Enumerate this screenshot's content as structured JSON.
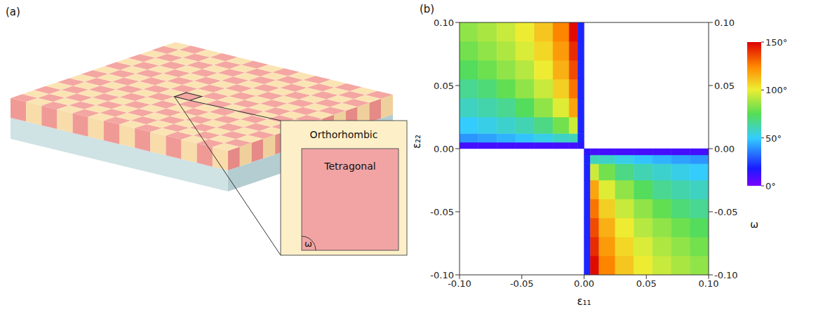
{
  "diagram": {
    "panel_label": "(a)",
    "inset": {
      "outer": "Orthorhombic",
      "inner": "Tetragonal",
      "angle": "ω"
    }
  },
  "chart_data": {
    "type": "heatmap",
    "panel_label": "(b)",
    "x_label": "ε₁₁",
    "y_label": "ε₂₂",
    "xlim": [
      -0.1,
      0.1
    ],
    "ylim": [
      -0.1,
      0.1
    ],
    "xticks": [
      {
        "value": -0.1,
        "label": "-0.10"
      },
      {
        "value": -0.05,
        "label": "-0.05"
      },
      {
        "value": 0,
        "label": "0.00"
      },
      {
        "value": 0.05,
        "label": "0.05"
      },
      {
        "value": 0.1,
        "label": "0.10"
      }
    ],
    "yticks": [
      {
        "value": -0.1,
        "label": "-0.10"
      },
      {
        "value": -0.05,
        "label": "-0.05"
      },
      {
        "value": 0,
        "label": "0.00"
      },
      {
        "value": 0.05,
        "label": "0.05"
      },
      {
        "value": 0.1,
        "label": "0.10"
      }
    ],
    "x_edges": [
      -0.1,
      -0.085,
      -0.07,
      -0.055,
      -0.04,
      -0.025,
      -0.012,
      -0.005,
      0,
      0.005,
      0.012,
      0.025,
      0.04,
      0.055,
      0.07,
      0.085,
      0.1
    ],
    "y_edges": [
      -0.1,
      -0.085,
      -0.07,
      -0.055,
      -0.04,
      -0.025,
      -0.012,
      -0.005,
      0,
      0.005,
      0.012,
      0.025,
      0.04,
      0.055,
      0.07,
      0.085,
      0.1
    ],
    "cells": [
      [
        null,
        null,
        null,
        null,
        null,
        null,
        null,
        null,
        20,
        148,
        125,
        110,
        101,
        94,
        89,
        85
      ],
      [
        null,
        null,
        null,
        null,
        null,
        null,
        null,
        null,
        20,
        142,
        120,
        106,
        97,
        90,
        85,
        80
      ],
      [
        null,
        null,
        null,
        null,
        null,
        null,
        null,
        null,
        20,
        136,
        115,
        101,
        91,
        85,
        79,
        74
      ],
      [
        null,
        null,
        null,
        null,
        null,
        null,
        null,
        null,
        20,
        128,
        108,
        94,
        85,
        77,
        70,
        66
      ],
      [
        null,
        null,
        null,
        null,
        null,
        null,
        null,
        null,
        20,
        118,
        98,
        85,
        74,
        66,
        62,
        59
      ],
      [
        null,
        null,
        null,
        null,
        null,
        null,
        null,
        null,
        20,
        95,
        80,
        68,
        61,
        57,
        53,
        50
      ],
      [
        null,
        null,
        null,
        null,
        null,
        null,
        null,
        null,
        20,
        60,
        58,
        53,
        48,
        45,
        42,
        40
      ],
      [
        null,
        null,
        null,
        null,
        null,
        null,
        null,
        null,
        15,
        10,
        10,
        10,
        10,
        10,
        10,
        10
      ],
      [
        10,
        10,
        10,
        10,
        10,
        10,
        10,
        15,
        null,
        null,
        null,
        null,
        null,
        null,
        null,
        null
      ],
      [
        40,
        42,
        45,
        48,
        53,
        58,
        60,
        20,
        null,
        null,
        null,
        null,
        null,
        null,
        null,
        null
      ],
      [
        50,
        53,
        57,
        61,
        68,
        80,
        95,
        20,
        null,
        null,
        null,
        null,
        null,
        null,
        null,
        null
      ],
      [
        59,
        62,
        66,
        74,
        85,
        98,
        118,
        20,
        null,
        null,
        null,
        null,
        null,
        null,
        null,
        null
      ],
      [
        66,
        70,
        77,
        85,
        94,
        108,
        128,
        20,
        null,
        null,
        null,
        null,
        null,
        null,
        null,
        null
      ],
      [
        74,
        79,
        85,
        91,
        101,
        115,
        136,
        20,
        null,
        null,
        null,
        null,
        null,
        null,
        null,
        null
      ],
      [
        80,
        85,
        90,
        97,
        106,
        120,
        142,
        20,
        null,
        null,
        null,
        null,
        null,
        null,
        null,
        null
      ],
      [
        85,
        89,
        94,
        101,
        110,
        125,
        148,
        20,
        null,
        null,
        null,
        null,
        null,
        null,
        null,
        null
      ]
    ],
    "colorbar": {
      "label": "ω",
      "range": [
        0,
        150
      ],
      "ticks": [
        {
          "value": 0,
          "label": "0°"
        },
        {
          "value": 50,
          "label": "50°"
        },
        {
          "value": 100,
          "label": "100°"
        },
        {
          "value": 150,
          "label": "150°"
        }
      ]
    }
  }
}
